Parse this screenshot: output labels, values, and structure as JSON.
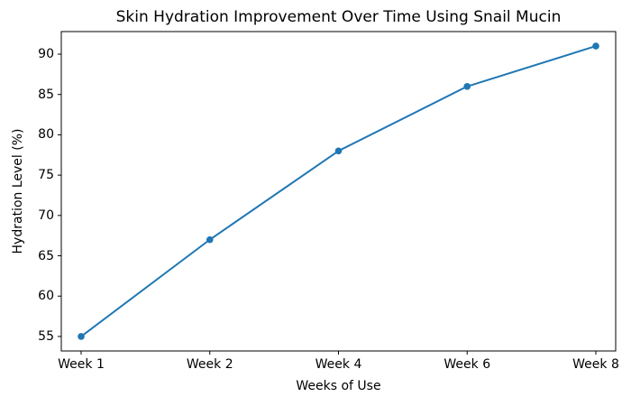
{
  "chart_data": {
    "type": "line",
    "title": "Skin Hydration Improvement Over Time Using Snail Mucin",
    "xlabel": "Weeks of Use",
    "ylabel": "Hydration Level (%)",
    "categories": [
      "Week 1",
      "Week 2",
      "Week 4",
      "Week 6",
      "Week 8"
    ],
    "series": [
      {
        "name": "Hydration Level",
        "values": [
          55,
          67,
          78,
          86,
          91
        ]
      }
    ],
    "yticks": [
      55,
      60,
      65,
      70,
      75,
      80,
      85,
      90
    ],
    "ylim": [
      53.2,
      92.8
    ],
    "grid": false,
    "legend_position": "none",
    "line_color": "#1f77b4",
    "marker": "circle",
    "marker_color": "#1f77b4",
    "axis_color": "#000000",
    "text_color": "#000000",
    "background_color": "#ffffff"
  }
}
